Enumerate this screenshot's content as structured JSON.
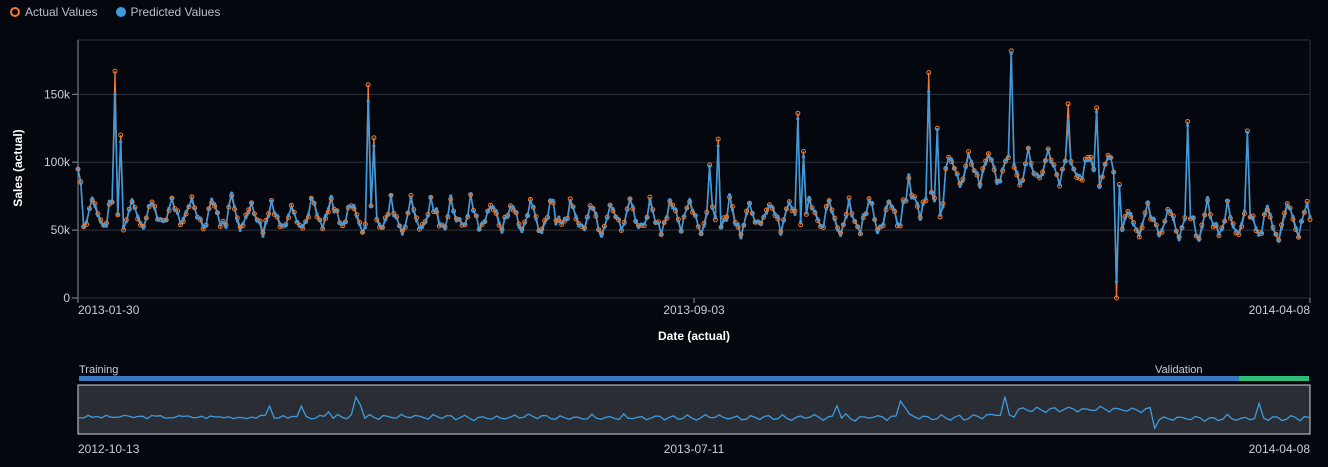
{
  "legend": {
    "actual": "Actual Values",
    "predicted": "Predicted Values"
  },
  "colors": {
    "actual": "#f07a2d",
    "predicted": "#3d9be0",
    "training": "#3a78c4",
    "validation": "#2ebd7a",
    "grid": "#2d323c"
  },
  "chart_data": {
    "type": "line",
    "xlabel": "Date (actual)",
    "ylabel": "Sales (actual)",
    "xlim": [
      "2013-01-30",
      "2014-04-08"
    ],
    "ylim": [
      0,
      190000
    ],
    "yticks": [
      0,
      50000,
      100000,
      150000
    ],
    "ytick_labels": [
      "0",
      "50k",
      "100k",
      "150k"
    ],
    "xtick_labels": [
      "2013-01-30",
      "2013-09-03",
      "2014-04-08"
    ],
    "grid": true,
    "legend_position": "top-left",
    "series": [
      {
        "name": "Actual Values",
        "dates": [],
        "values": []
      },
      {
        "name": "Predicted Values",
        "dates": [],
        "values": []
      }
    ],
    "base_level": 60000,
    "spikes": [
      {
        "date": "2013-02-12",
        "actual": 167000,
        "predicted": 150000
      },
      {
        "date": "2013-02-14",
        "actual": 120000,
        "predicted": 115000
      },
      {
        "date": "2013-05-12",
        "actual": 157000,
        "predicted": 145000
      },
      {
        "date": "2013-05-14",
        "actual": 118000,
        "predicted": 112000
      },
      {
        "date": "2013-09-09",
        "actual": 98000,
        "predicted": 97000
      },
      {
        "date": "2013-09-12",
        "actual": 117000,
        "predicted": 112000
      },
      {
        "date": "2013-10-10",
        "actual": 136000,
        "predicted": 132000
      },
      {
        "date": "2013-10-12",
        "actual": 108000,
        "predicted": 104000
      },
      {
        "date": "2013-11-25",
        "actual": 166000,
        "predicted": 152000
      },
      {
        "date": "2013-11-28",
        "actual": 125000,
        "predicted": 124000
      },
      {
        "date": "2013-12-24",
        "actual": 182000,
        "predicted": 180000
      },
      {
        "date": "2014-01-13",
        "actual": 143000,
        "predicted": 130000
      },
      {
        "date": "2014-01-23",
        "actual": 140000,
        "predicted": 137000
      },
      {
        "date": "2014-01-30",
        "actual": 0,
        "predicted": 12000
      },
      {
        "date": "2014-02-24",
        "actual": 130000,
        "predicted": 127000
      },
      {
        "date": "2014-03-17",
        "actual": 123000,
        "predicted": 122000
      }
    ]
  },
  "navigator": {
    "training_label": "Training",
    "validation_label": "Validation",
    "start_date": "2012-10-13",
    "mid_date": "2013-07-11",
    "end_date": "2014-04-08",
    "validation_start": "2014-03-08"
  }
}
